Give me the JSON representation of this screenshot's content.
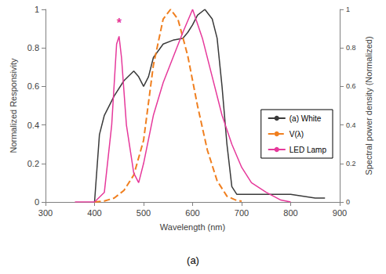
{
  "chart_data": {
    "type": "line",
    "caption": "(a)",
    "x_label": "Wavelength (nm)",
    "y_label": "Normalized Responsivity",
    "y2_label": "Spectral power density (Normalized)",
    "xlim": [
      300,
      900
    ],
    "xticks": [
      300,
      400,
      500,
      600,
      700,
      800,
      900
    ],
    "ylim": [
      0,
      1
    ],
    "yticks": [
      0,
      0.2,
      0.4,
      0.6,
      0.8,
      1
    ],
    "y2lim": [
      0,
      1
    ],
    "y2ticks": [
      0,
      0.2,
      0.4,
      0.6,
      0.8,
      1
    ],
    "grid": false,
    "legend": "right",
    "series": [
      {
        "name": "(a) White",
        "color": "#3a3a3a",
        "line_style": "solid",
        "x": [
          400,
          410,
          420,
          440,
          460,
          480,
          490,
          500,
          510,
          520,
          540,
          560,
          580,
          590,
          600,
          610,
          625,
          640,
          650,
          660,
          670,
          680,
          690,
          700,
          750,
          800,
          850,
          870
        ],
        "values": [
          0,
          0.35,
          0.45,
          0.55,
          0.63,
          0.68,
          0.65,
          0.6,
          0.65,
          0.75,
          0.82,
          0.84,
          0.85,
          0.88,
          0.92,
          0.97,
          1.0,
          0.95,
          0.85,
          0.6,
          0.3,
          0.08,
          0.04,
          0.04,
          0.04,
          0.04,
          0.02,
          0.02
        ]
      },
      {
        "name": "V(λ)",
        "color": "#f07f1f",
        "line_style": "dashed",
        "x": [
          400,
          420,
          440,
          460,
          480,
          500,
          520,
          540,
          555,
          570,
          590,
          610,
          630,
          650,
          670,
          690,
          700
        ],
        "values": [
          0,
          0.005,
          0.02,
          0.06,
          0.14,
          0.32,
          0.71,
          0.95,
          1.0,
          0.95,
          0.76,
          0.5,
          0.27,
          0.11,
          0.03,
          0.008,
          0.004
        ]
      },
      {
        "name": "LED Lamp",
        "color": "#e6399b",
        "line_style": "solid",
        "axis": "y2",
        "x": [
          360,
          400,
          420,
          435,
          445,
          450,
          455,
          465,
          480,
          490,
          500,
          520,
          540,
          560,
          580,
          600,
          620,
          640,
          660,
          680,
          700,
          720,
          750,
          780,
          800
        ],
        "values": [
          0,
          0,
          0.05,
          0.4,
          0.82,
          0.86,
          0.75,
          0.4,
          0.15,
          0.1,
          0.2,
          0.45,
          0.62,
          0.75,
          0.88,
          1.0,
          0.85,
          0.65,
          0.45,
          0.3,
          0.18,
          0.1,
          0.05,
          0.01,
          0
        ]
      }
    ],
    "annotations": [
      {
        "text": "*",
        "x": 450,
        "y": 0.93,
        "color": "#e6399b",
        "axis": "y2"
      }
    ]
  }
}
